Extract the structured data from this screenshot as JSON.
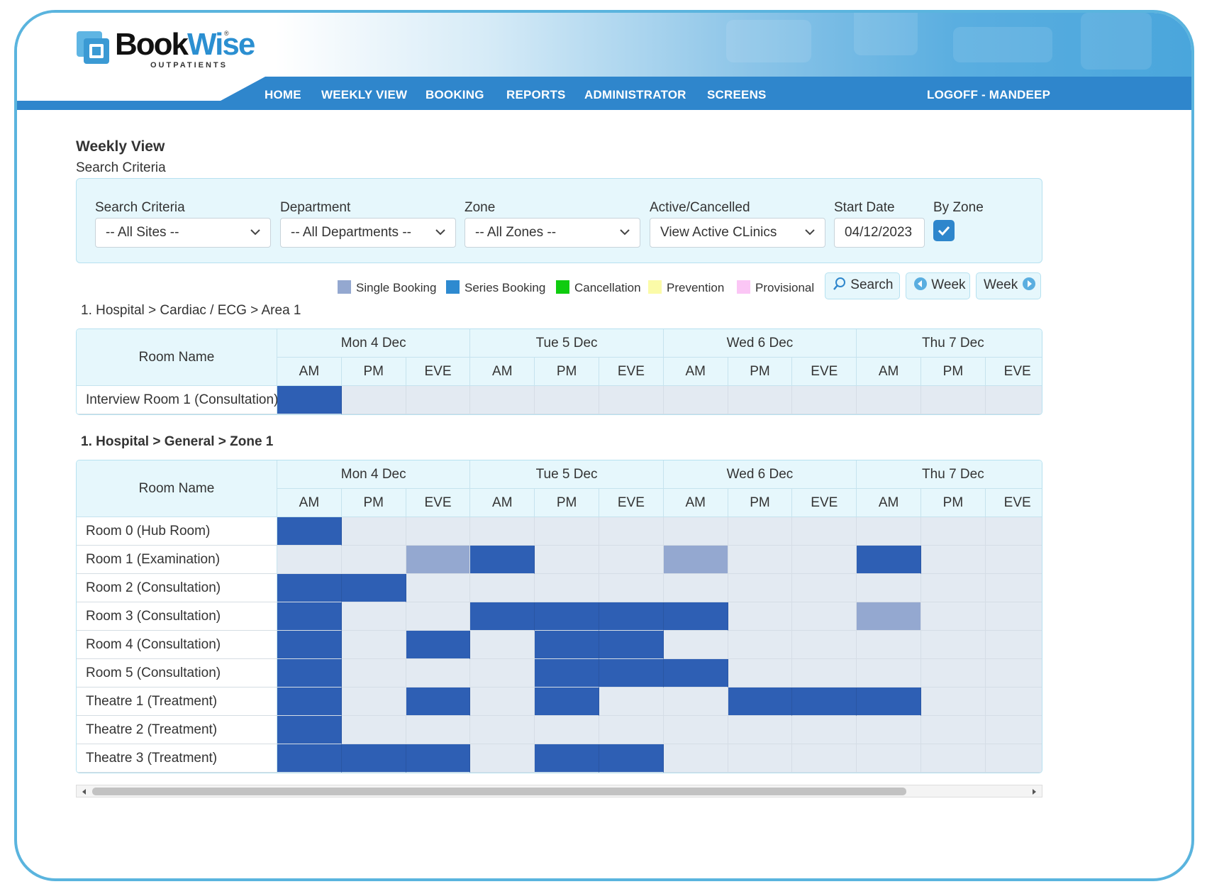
{
  "brand": {
    "word1": "Book",
    "word2": "Wise",
    "sub": "OUTPATIENTS",
    "reg": "®"
  },
  "nav": {
    "items": [
      "HOME",
      "WEEKLY VIEW",
      "BOOKING",
      "REPORTS",
      "ADMINISTRATOR",
      "SCREENS"
    ],
    "logoff": "LOGOFF - MANDEEP"
  },
  "page": {
    "title": "Weekly View",
    "subtitle": "Search Criteria"
  },
  "criteria": {
    "labels": [
      "Search Criteria",
      "Department",
      "Zone",
      "Active/Cancelled",
      "Start Date",
      "By Zone"
    ],
    "site": "-- All Sites --",
    "department": "-- All Departments --",
    "zone": "-- All Zones --",
    "status": "View Active CLinics",
    "start_date": "04/12/2023",
    "by_zone_checked": true
  },
  "legend": [
    {
      "label": "Single Booking",
      "color": "#94a8d0"
    },
    {
      "label": "Series Booking",
      "color": "#2e8ad0"
    },
    {
      "label": "Cancellation",
      "color": "#0fcc0f"
    },
    {
      "label": "Prevention",
      "color": "#fbfba8"
    },
    {
      "label": "Provisional",
      "color": "#fbc6f5"
    }
  ],
  "buttons": {
    "search": "Search",
    "prev_week": "Week",
    "next_week": "Week"
  },
  "colors": {
    "series": "#2e5fb4",
    "single": "#94a8d0",
    "empty": "#e3eaf2",
    "accent": "#2f86cc"
  },
  "grid_header": {
    "room_name": "Room Name",
    "days": [
      "Mon 4 Dec",
      "Tue 5 Dec",
      "Wed 6 Dec",
      "Thu 7 Dec"
    ],
    "sessions": [
      "AM",
      "PM",
      "EVE"
    ]
  },
  "sections": [
    {
      "path": "1. Hospital  >  Cardiac / ECG  >  Area 1",
      "bold": false,
      "rows": [
        {
          "name": "Interview Room 1 (Consultation)",
          "slots": [
            "S",
            "",
            "",
            "",
            "",
            "",
            "",
            "",
            "",
            "",
            "",
            ""
          ]
        }
      ]
    },
    {
      "path": "1. Hospital  >  General  >  Zone 1",
      "bold": true,
      "rows": [
        {
          "name": "Room 0 (Hub Room)",
          "slots": [
            "S",
            "",
            "",
            "",
            "",
            "",
            "",
            "",
            "",
            "",
            "",
            ""
          ]
        },
        {
          "name": "Room 1 (Examination)",
          "slots": [
            "",
            "",
            "B",
            "S",
            "",
            "",
            "B",
            "",
            "",
            "S",
            "",
            ""
          ]
        },
        {
          "name": "Room 2 (Consultation)",
          "slots": [
            "S",
            "S",
            "",
            "",
            "",
            "",
            "",
            "",
            "",
            "",
            "",
            ""
          ]
        },
        {
          "name": "Room 3 (Consultation)",
          "slots": [
            "S",
            "",
            "",
            "S",
            "S",
            "S",
            "S",
            "",
            "",
            "B",
            "",
            ""
          ]
        },
        {
          "name": "Room 4 (Consultation)",
          "slots": [
            "S",
            "",
            "S",
            "",
            "S",
            "S",
            "",
            "",
            "",
            "",
            "",
            ""
          ]
        },
        {
          "name": "Room 5 (Consultation)",
          "slots": [
            "S",
            "",
            "",
            "",
            "S",
            "S",
            "S",
            "",
            "",
            "",
            "",
            ""
          ]
        },
        {
          "name": "Theatre 1 (Treatment)",
          "slots": [
            "S",
            "",
            "S",
            "",
            "S",
            "",
            "",
            "S",
            "S",
            "S",
            "",
            ""
          ]
        },
        {
          "name": "Theatre 2 (Treatment)",
          "slots": [
            "S",
            "",
            "",
            "",
            "",
            "",
            "",
            "",
            "",
            "",
            "",
            ""
          ]
        },
        {
          "name": "Theatre 3 (Treatment)",
          "slots": [
            "S",
            "S",
            "S",
            "",
            "S",
            "S",
            "",
            "",
            "",
            "",
            "",
            ""
          ]
        }
      ]
    }
  ]
}
